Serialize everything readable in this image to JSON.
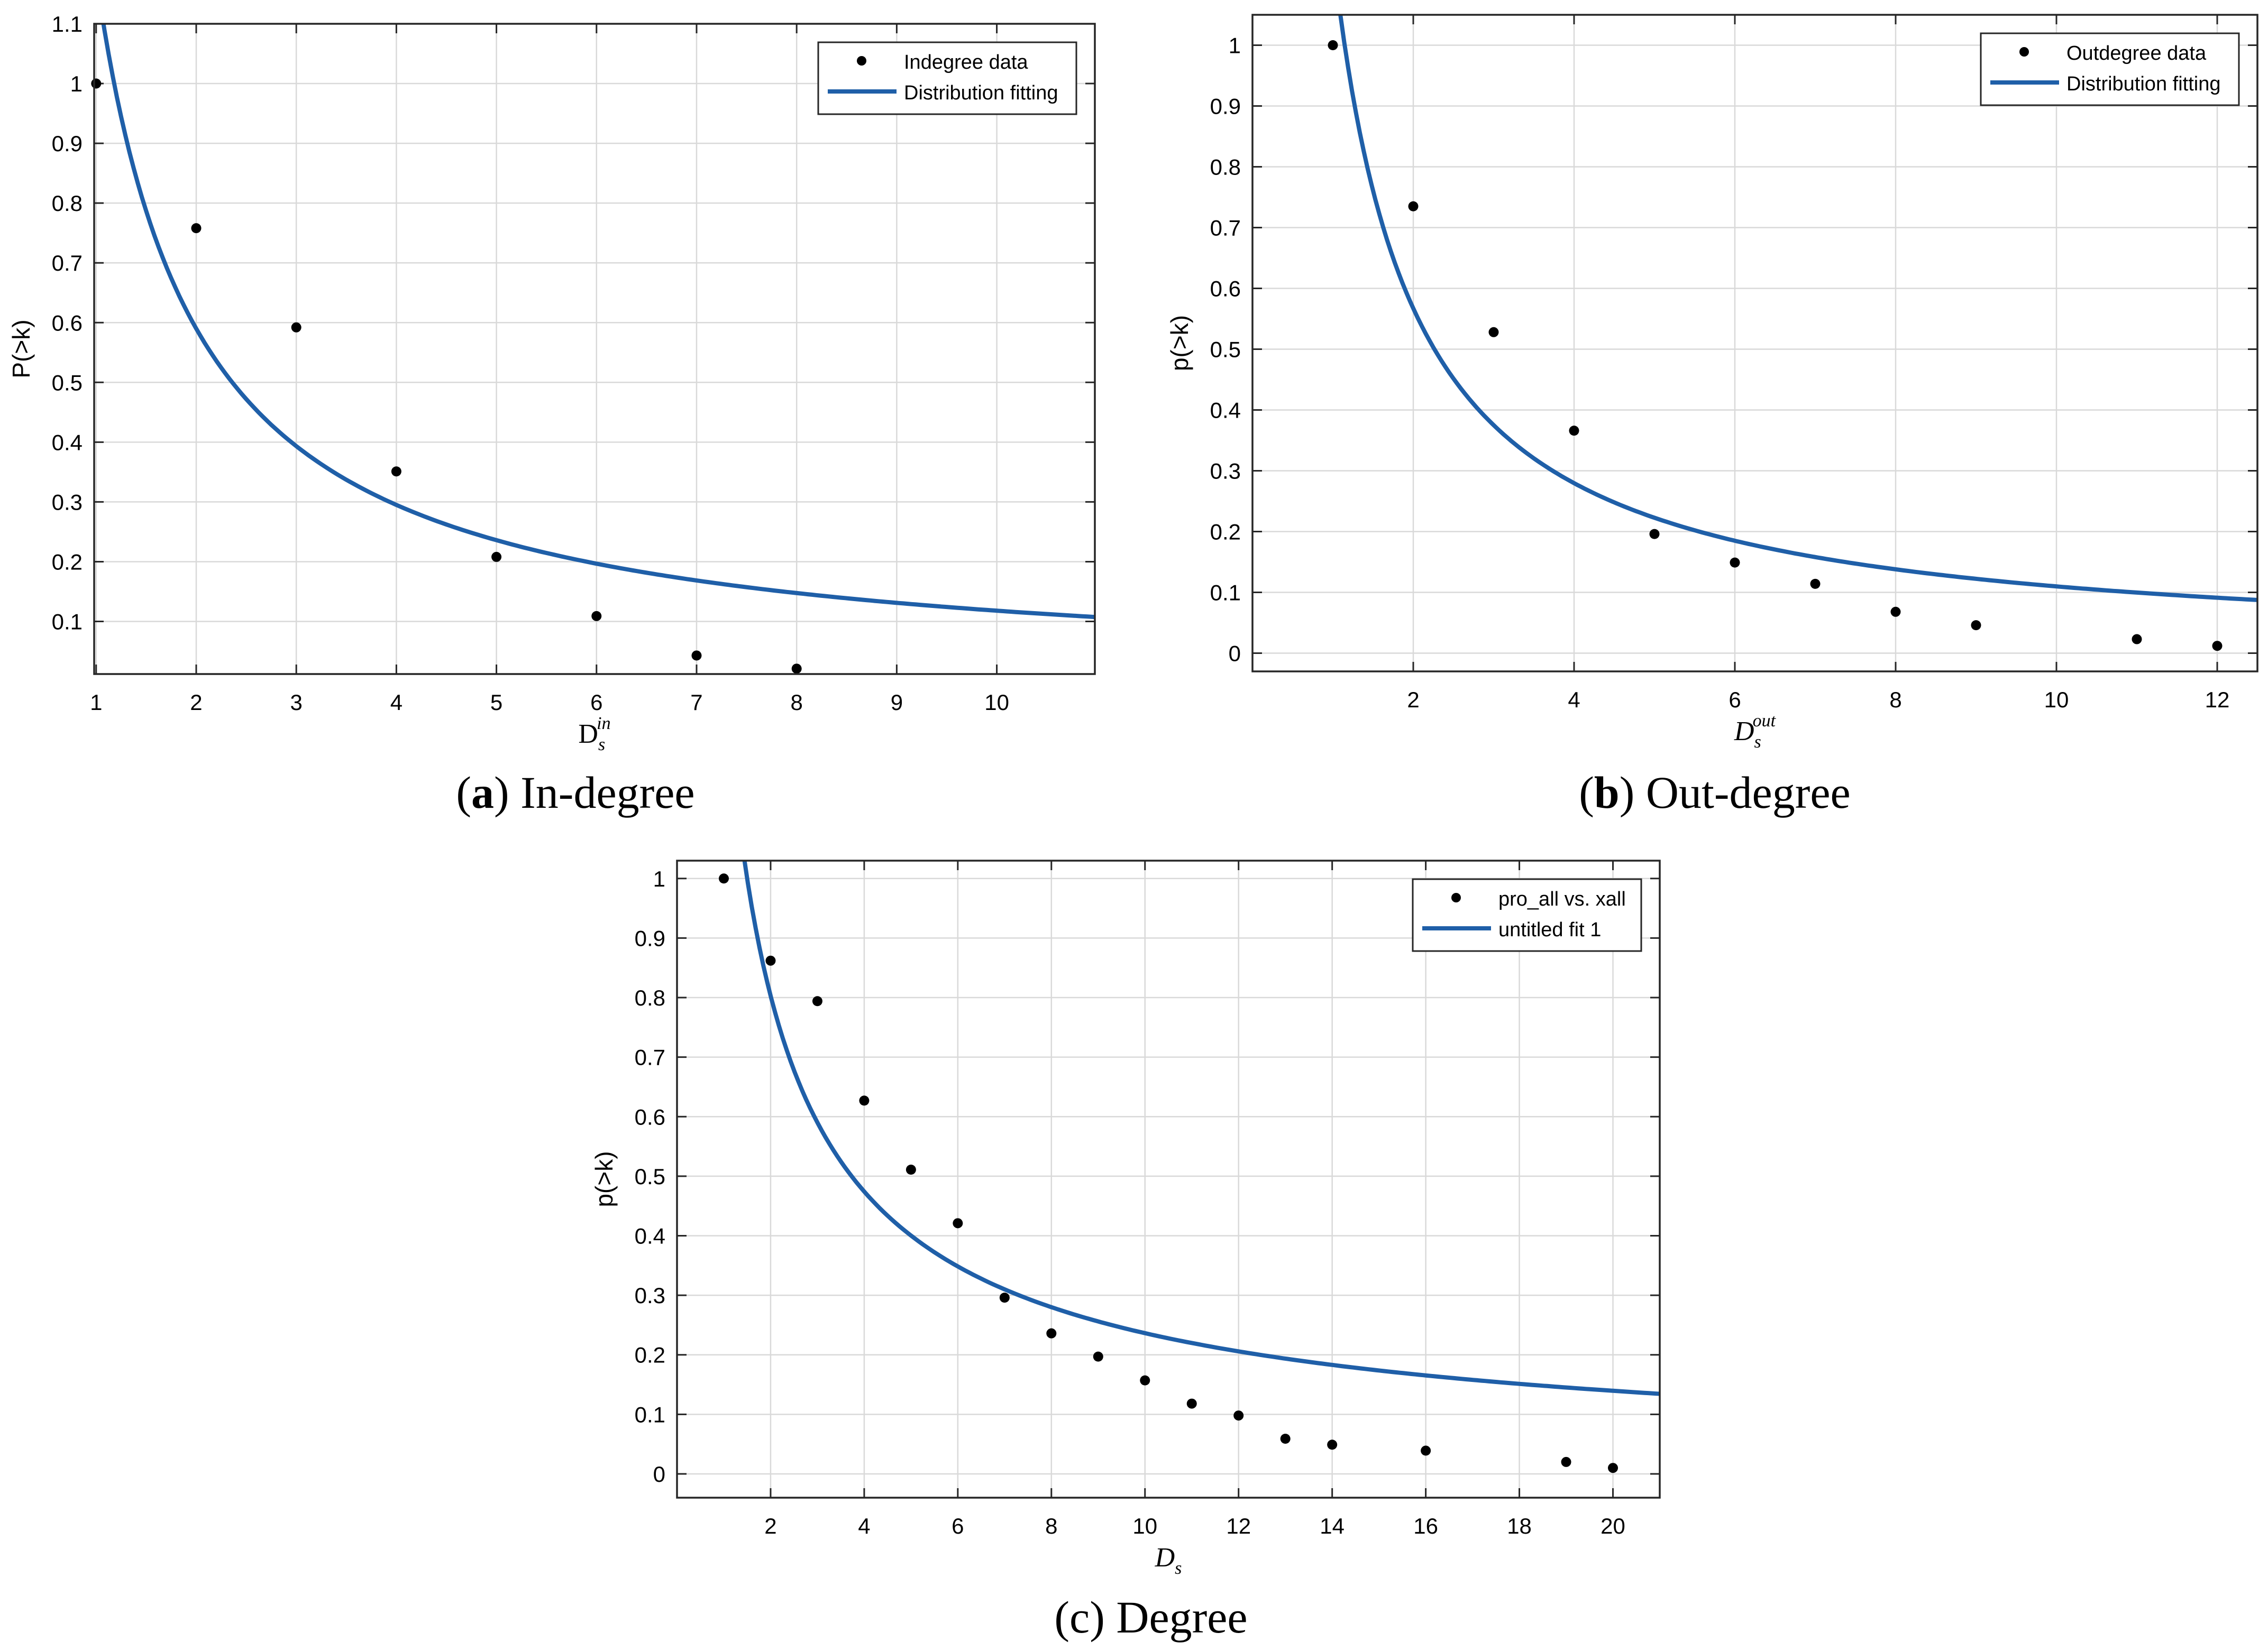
{
  "captions": [
    {
      "letter": "a",
      "text": ") In-degree",
      "open": "("
    },
    {
      "letter": "b",
      "text": ") Out-degree",
      "open": "("
    },
    {
      "letter": "c",
      "text": ") Degree",
      "open": "("
    }
  ],
  "colors": {
    "fit": "#1f5fa8",
    "points": "#000000",
    "grid": "#d9d9d9",
    "axis": "#262626"
  },
  "chart_data": [
    {
      "id": "a",
      "type": "scatter",
      "title": "",
      "ylabel": "P(>k)",
      "xlabel": {
        "base": "D",
        "sub": "s",
        "sup": "in",
        "base_upright": true
      },
      "xlim": [
        0.98,
        10.98
      ],
      "ylim": [
        0.012,
        1.1
      ],
      "xticks": [
        1,
        2,
        3,
        4,
        5,
        6,
        7,
        8,
        9,
        10
      ],
      "yticks": [
        0.1,
        0.2,
        0.3,
        0.4,
        0.5,
        0.6,
        0.7,
        0.8,
        0.9,
        1,
        1.1
      ],
      "grid": true,
      "legend": {
        "position": "top-right",
        "entries": [
          "Indegree data",
          "Distribution fitting"
        ]
      },
      "series": [
        {
          "name": "Indegree data",
          "kind": "points",
          "x": [
            1,
            2,
            3,
            4,
            5,
            6,
            7,
            8
          ],
          "y": [
            1.0,
            0.758,
            0.592,
            0.351,
            0.208,
            0.109,
            0.043,
            0.021
          ]
        },
        {
          "name": "Distribution fitting",
          "kind": "line",
          "model": "power",
          "a": 1.18,
          "b": -1.0,
          "x_range": [
            1.0,
            10.98
          ]
        }
      ]
    },
    {
      "id": "b",
      "type": "scatter",
      "title": "",
      "ylabel": "p(>k)",
      "xlabel": {
        "base": "D",
        "sub": "s",
        "sup": "out",
        "base_upright": false
      },
      "xlim": [
        0,
        12.5
      ],
      "ylim": [
        -0.03,
        1.05
      ],
      "xticks": [
        2,
        4,
        6,
        8,
        10,
        12
      ],
      "yticks": [
        0,
        0.1,
        0.2,
        0.3,
        0.4,
        0.5,
        0.6,
        0.7,
        0.8,
        0.9,
        1
      ],
      "grid": true,
      "legend": {
        "position": "top-right",
        "entries": [
          "Outdegree data",
          "Distribution fitting"
        ]
      },
      "series": [
        {
          "name": "Outdegree data",
          "kind": "points",
          "x": [
            1,
            2,
            3,
            4,
            5,
            6,
            7,
            8,
            9,
            11,
            12
          ],
          "y": [
            1.0,
            0.735,
            0.528,
            0.366,
            0.196,
            0.149,
            0.114,
            0.068,
            0.046,
            0.023,
            0.012
          ]
        },
        {
          "name": "Distribution fitting",
          "kind": "line",
          "model": "power",
          "a": 1.15,
          "b": -1.02,
          "x_range": [
            0.9,
            12.5
          ]
        }
      ]
    },
    {
      "id": "c",
      "type": "scatter",
      "title": "",
      "ylabel": "p(>k)",
      "xlabel": {
        "base": "D",
        "sub": "s",
        "sup": "",
        "base_upright": false
      },
      "xlim": [
        0,
        21
      ],
      "ylim": [
        -0.04,
        1.03
      ],
      "xticks": [
        2,
        4,
        6,
        8,
        10,
        12,
        14,
        16,
        18,
        20
      ],
      "yticks": [
        0,
        0.1,
        0.2,
        0.3,
        0.4,
        0.5,
        0.6,
        0.7,
        0.8,
        0.9,
        1
      ],
      "grid": true,
      "legend": {
        "position": "top-right",
        "entries": [
          "pro_all vs. xall",
          "untitled fit 1"
        ]
      },
      "series": [
        {
          "name": "pro_all vs. xall",
          "kind": "points",
          "x": [
            1,
            2,
            3,
            4,
            5,
            6,
            7,
            8,
            9,
            10,
            11,
            12,
            13,
            14,
            16,
            19,
            20
          ],
          "y": [
            1.0,
            0.862,
            0.794,
            0.627,
            0.511,
            0.421,
            0.296,
            0.236,
            0.197,
            0.157,
            0.118,
            0.098,
            0.059,
            0.049,
            0.039,
            0.02,
            0.01
          ]
        },
        {
          "name": "untitled fit 1",
          "kind": "line",
          "model": "power",
          "a": 1.36,
          "b": -0.76,
          "x_range": [
            1.1,
            21
          ]
        }
      ]
    }
  ]
}
